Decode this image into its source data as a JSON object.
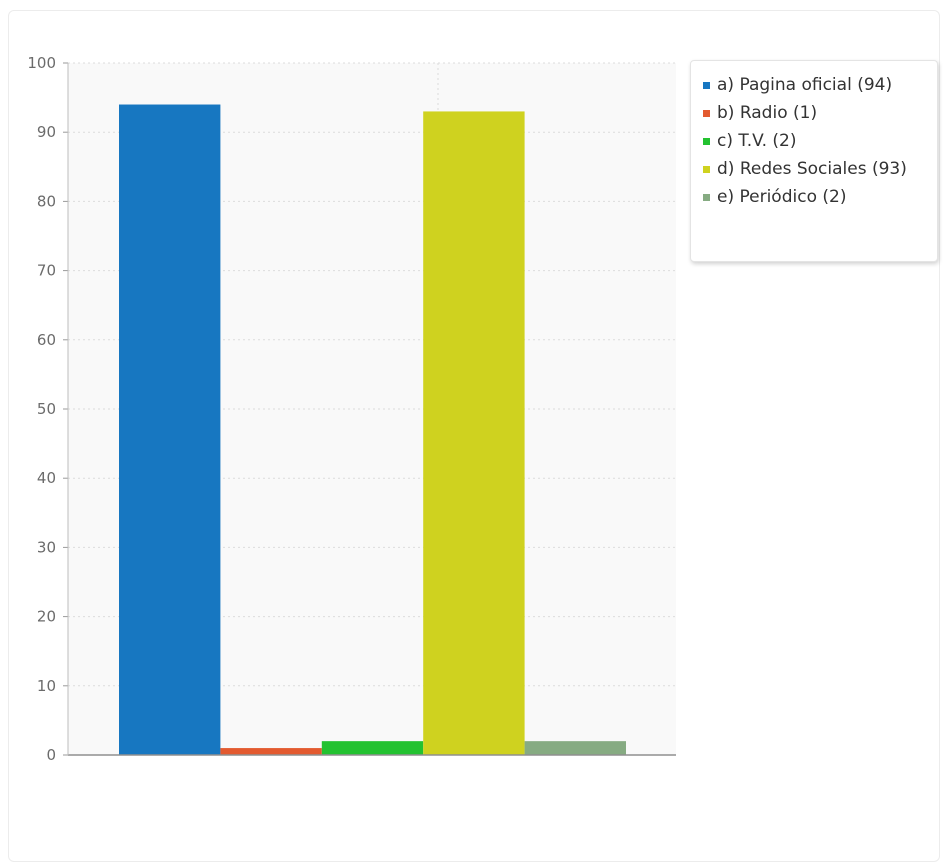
{
  "chart_data": {
    "type": "bar",
    "title": "",
    "xlabel": "",
    "ylabel": "",
    "ylim": [
      0,
      100
    ],
    "yticks": [
      0,
      10,
      20,
      30,
      40,
      50,
      60,
      70,
      80,
      90,
      100
    ],
    "grid": true,
    "legend_position": "top-right",
    "series": [
      {
        "name": "a) Pagina oficial (94)",
        "value": 94,
        "color": "#1777c1"
      },
      {
        "name": "b) Radio (1)",
        "value": 1,
        "color": "#e35a2f"
      },
      {
        "name": "c) T.V. (2)",
        "value": 2,
        "color": "#23c230"
      },
      {
        "name": "d) Redes Sociales (93)",
        "value": 93,
        "color": "#cfd21f"
      },
      {
        "name": "e) Periódico (2)",
        "value": 2,
        "color": "#86ab82"
      }
    ]
  }
}
